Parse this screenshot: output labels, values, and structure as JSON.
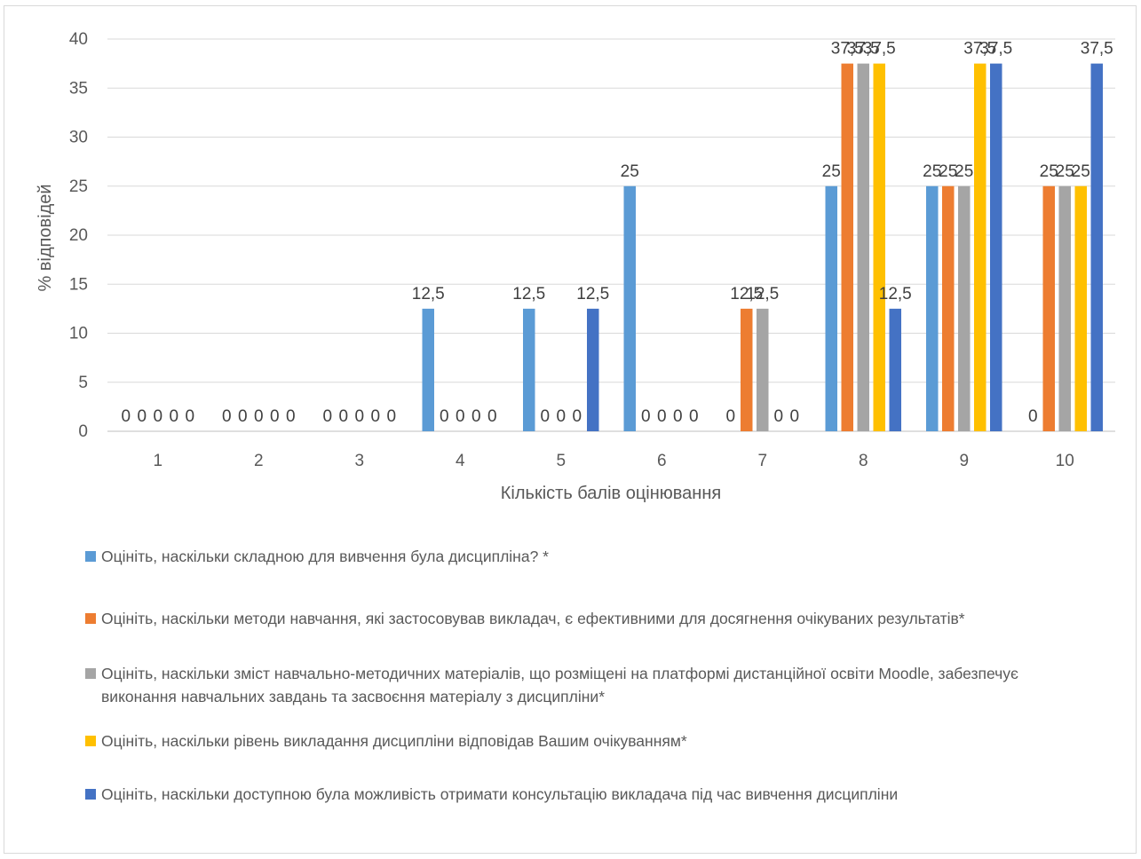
{
  "chart_data": {
    "type": "bar",
    "title": "",
    "xlabel": "Кількість балів оцінювання",
    "ylabel": "% відповідей",
    "ylim": [
      0,
      40
    ],
    "y_ticks": [
      "0",
      "5",
      "10",
      "15",
      "20",
      "25",
      "30",
      "35",
      "40"
    ],
    "grid": true,
    "legend_position": "bottom",
    "categories": [
      "1",
      "2",
      "3",
      "4",
      "5",
      "6",
      "7",
      "8",
      "9",
      "10"
    ],
    "series": [
      {
        "name": "Оцініть, наскільки складною для вивчення була дисципліна? *",
        "color": "#5b9bd5",
        "values": [
          0,
          0,
          0,
          12.5,
          12.5,
          25,
          0,
          25,
          25,
          0
        ],
        "labels": [
          "0",
          "0",
          "0",
          "12,5",
          "12,5",
          "25",
          "0",
          "25",
          "25",
          "0"
        ]
      },
      {
        "name": "Оцініть, наскільки методи навчання, які застосовував викладач, є ефективними для досягнення очікуваних результатів*",
        "color": "#ed7d31",
        "values": [
          0,
          0,
          0,
          0,
          0,
          0,
          12.5,
          37.5,
          25,
          25
        ],
        "labels": [
          "0",
          "0",
          "0",
          "0",
          "0",
          "0",
          "12,5",
          "37,5",
          "25",
          "25"
        ]
      },
      {
        "name": "Оцініть, наскільки зміст навчально-методичних матеріалів, що розміщені на платформі дистанційної освіти Moodle, забезпечує виконання навчальних завдань та засвоєння матеріалу з дисципліни*",
        "color": "#a5a5a5",
        "values": [
          0,
          0,
          0,
          0,
          0,
          0,
          12.5,
          37.5,
          25,
          25
        ],
        "labels": [
          "0",
          "0",
          "0",
          "0",
          "0",
          "0",
          "12,5",
          "37,5",
          "25",
          "25"
        ]
      },
      {
        "name": "Оцініть, наскільки рівень викладання дисципліни відповідав Вашим очікуванням*",
        "color": "#ffc000",
        "values": [
          0,
          0,
          0,
          0,
          0,
          0,
          0,
          37.5,
          37.5,
          25
        ],
        "labels": [
          "0",
          "0",
          "0",
          "0",
          "0",
          "0",
          "0",
          "37,5",
          "37,5",
          "25"
        ]
      },
      {
        "name": "Оцініть, наскільки доступною була можливість отримати консультацію викладача під час вивчення дисципліни",
        "color": "#4472c4",
        "values": [
          0,
          0,
          0,
          0,
          12.5,
          0,
          0,
          12.5,
          37.5,
          37.5
        ],
        "labels": [
          "0",
          "0",
          "0",
          "0",
          "12,5",
          "0",
          "0",
          "12,5",
          "37,5",
          "37,5"
        ]
      }
    ]
  }
}
